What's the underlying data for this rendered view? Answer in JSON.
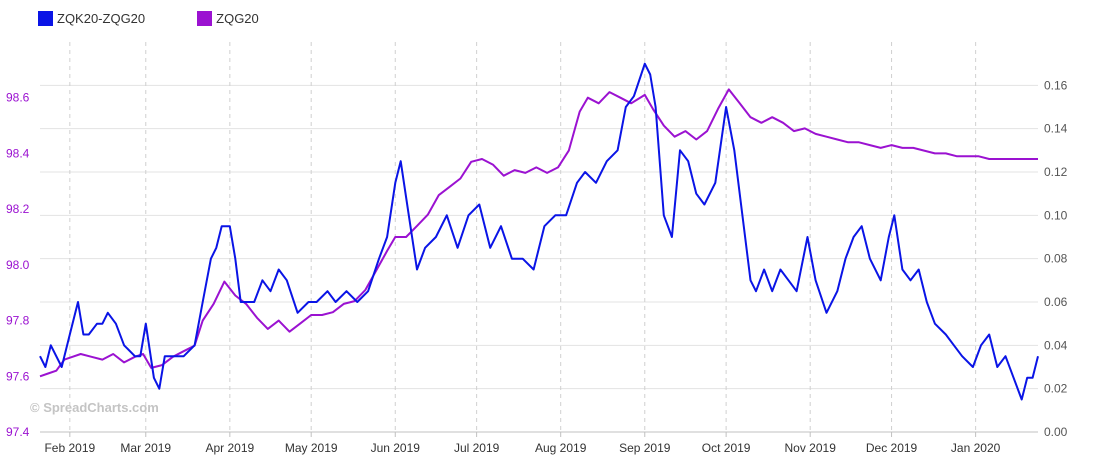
{
  "legend": [
    {
      "name": "ZQK20-ZQG20",
      "color": "#0a14e6"
    },
    {
      "name": "ZQG20",
      "color": "#9b12d1"
    }
  ],
  "watermark": "© SpreadCharts.com",
  "chart_data": {
    "type": "line",
    "x_start": "2019-01-21",
    "x_end": "2020-01-24",
    "x_ticks": [
      {
        "label": "Feb 2019",
        "date": "2019-02-01"
      },
      {
        "label": "Mar 2019",
        "date": "2019-03-01"
      },
      {
        "label": "Apr 2019",
        "date": "2019-04-01"
      },
      {
        "label": "May 2019",
        "date": "2019-05-01"
      },
      {
        "label": "Jun 2019",
        "date": "2019-06-01"
      },
      {
        "label": "Jul 2019",
        "date": "2019-07-01"
      },
      {
        "label": "Aug 2019",
        "date": "2019-08-01"
      },
      {
        "label": "Sep 2019",
        "date": "2019-09-01"
      },
      {
        "label": "Oct 2019",
        "date": "2019-10-01"
      },
      {
        "label": "Nov 2019",
        "date": "2019-11-01"
      },
      {
        "label": "Dec 2019",
        "date": "2019-12-01"
      },
      {
        "label": "Jan 2020",
        "date": "2020-01-01"
      }
    ],
    "y_left": {
      "min": 97.4,
      "max": 98.8,
      "ticks": [
        "97.4",
        "97.6",
        "97.8",
        "98.0",
        "98.2",
        "98.4",
        "98.6"
      ],
      "color": "#9b12d1"
    },
    "y_right": {
      "min": 0.0,
      "max": 0.18,
      "ticks": [
        "0.00",
        "0.02",
        "0.04",
        "0.06",
        "0.08",
        "0.10",
        "0.12",
        "0.14",
        "0.16"
      ],
      "color": "#555555"
    },
    "grid": true,
    "legend_position": "top-left",
    "series": [
      {
        "name": "ZQK20-ZQG20",
        "axis": "right",
        "color": "#0a14e6",
        "points": [
          [
            "2019-01-21",
            0.035
          ],
          [
            "2019-01-23",
            0.03
          ],
          [
            "2019-01-25",
            0.04
          ],
          [
            "2019-01-29",
            0.03
          ],
          [
            "2019-02-01",
            0.045
          ],
          [
            "2019-02-04",
            0.06
          ],
          [
            "2019-02-06",
            0.045
          ],
          [
            "2019-02-08",
            0.045
          ],
          [
            "2019-02-11",
            0.05
          ],
          [
            "2019-02-13",
            0.05
          ],
          [
            "2019-02-15",
            0.055
          ],
          [
            "2019-02-18",
            0.05
          ],
          [
            "2019-02-21",
            0.04
          ],
          [
            "2019-02-25",
            0.035
          ],
          [
            "2019-02-27",
            0.035
          ],
          [
            "2019-03-01",
            0.05
          ],
          [
            "2019-03-04",
            0.025
          ],
          [
            "2019-03-06",
            0.02
          ],
          [
            "2019-03-08",
            0.035
          ],
          [
            "2019-03-11",
            0.035
          ],
          [
            "2019-03-15",
            0.035
          ],
          [
            "2019-03-19",
            0.04
          ],
          [
            "2019-03-22",
            0.06
          ],
          [
            "2019-03-25",
            0.08
          ],
          [
            "2019-03-27",
            0.085
          ],
          [
            "2019-03-29",
            0.095
          ],
          [
            "2019-04-01",
            0.095
          ],
          [
            "2019-04-03",
            0.08
          ],
          [
            "2019-04-05",
            0.06
          ],
          [
            "2019-04-10",
            0.06
          ],
          [
            "2019-04-13",
            0.07
          ],
          [
            "2019-04-16",
            0.065
          ],
          [
            "2019-04-19",
            0.075
          ],
          [
            "2019-04-22",
            0.07
          ],
          [
            "2019-04-26",
            0.055
          ],
          [
            "2019-04-30",
            0.06
          ],
          [
            "2019-05-03",
            0.06
          ],
          [
            "2019-05-07",
            0.065
          ],
          [
            "2019-05-10",
            0.06
          ],
          [
            "2019-05-14",
            0.065
          ],
          [
            "2019-05-18",
            0.06
          ],
          [
            "2019-05-22",
            0.065
          ],
          [
            "2019-05-26",
            0.08
          ],
          [
            "2019-05-29",
            0.09
          ],
          [
            "2019-06-01",
            0.115
          ],
          [
            "2019-06-03",
            0.125
          ],
          [
            "2019-06-06",
            0.1
          ],
          [
            "2019-06-09",
            0.075
          ],
          [
            "2019-06-12",
            0.085
          ],
          [
            "2019-06-16",
            0.09
          ],
          [
            "2019-06-20",
            0.1
          ],
          [
            "2019-06-24",
            0.085
          ],
          [
            "2019-06-28",
            0.1
          ],
          [
            "2019-07-02",
            0.105
          ],
          [
            "2019-07-06",
            0.085
          ],
          [
            "2019-07-10",
            0.095
          ],
          [
            "2019-07-14",
            0.08
          ],
          [
            "2019-07-18",
            0.08
          ],
          [
            "2019-07-22",
            0.075
          ],
          [
            "2019-07-26",
            0.095
          ],
          [
            "2019-07-30",
            0.1
          ],
          [
            "2019-08-03",
            0.1
          ],
          [
            "2019-08-07",
            0.115
          ],
          [
            "2019-08-10",
            0.12
          ],
          [
            "2019-08-14",
            0.115
          ],
          [
            "2019-08-18",
            0.125
          ],
          [
            "2019-08-22",
            0.13
          ],
          [
            "2019-08-25",
            0.15
          ],
          [
            "2019-08-28",
            0.155
          ],
          [
            "2019-09-01",
            0.17
          ],
          [
            "2019-09-03",
            0.165
          ],
          [
            "2019-09-05",
            0.15
          ],
          [
            "2019-09-08",
            0.1
          ],
          [
            "2019-09-11",
            0.09
          ],
          [
            "2019-09-14",
            0.13
          ],
          [
            "2019-09-17",
            0.125
          ],
          [
            "2019-09-20",
            0.11
          ],
          [
            "2019-09-23",
            0.105
          ],
          [
            "2019-09-27",
            0.115
          ],
          [
            "2019-10-01",
            0.15
          ],
          [
            "2019-10-04",
            0.13
          ],
          [
            "2019-10-07",
            0.1
          ],
          [
            "2019-10-10",
            0.07
          ],
          [
            "2019-10-12",
            0.065
          ],
          [
            "2019-10-15",
            0.075
          ],
          [
            "2019-10-18",
            0.065
          ],
          [
            "2019-10-21",
            0.075
          ],
          [
            "2019-10-24",
            0.07
          ],
          [
            "2019-10-27",
            0.065
          ],
          [
            "2019-10-31",
            0.09
          ],
          [
            "2019-11-03",
            0.07
          ],
          [
            "2019-11-07",
            0.055
          ],
          [
            "2019-11-11",
            0.065
          ],
          [
            "2019-11-14",
            0.08
          ],
          [
            "2019-11-17",
            0.09
          ],
          [
            "2019-11-20",
            0.095
          ],
          [
            "2019-11-23",
            0.08
          ],
          [
            "2019-11-27",
            0.07
          ],
          [
            "2019-11-30",
            0.09
          ],
          [
            "2019-12-02",
            0.1
          ],
          [
            "2019-12-05",
            0.075
          ],
          [
            "2019-12-08",
            0.07
          ],
          [
            "2019-12-11",
            0.075
          ],
          [
            "2019-12-14",
            0.06
          ],
          [
            "2019-12-17",
            0.05
          ],
          [
            "2019-12-21",
            0.045
          ],
          [
            "2019-12-24",
            0.04
          ],
          [
            "2019-12-27",
            0.035
          ],
          [
            "2019-12-31",
            0.03
          ],
          [
            "2020-01-03",
            0.04
          ],
          [
            "2020-01-06",
            0.045
          ],
          [
            "2020-01-09",
            0.03
          ],
          [
            "2020-01-12",
            0.035
          ],
          [
            "2020-01-15",
            0.025
          ],
          [
            "2020-01-18",
            0.015
          ],
          [
            "2020-01-20",
            0.025
          ],
          [
            "2020-01-22",
            0.025
          ],
          [
            "2020-01-24",
            0.035
          ]
        ]
      },
      {
        "name": "ZQG20",
        "axis": "left",
        "color": "#9b12d1",
        "points": [
          [
            "2019-01-21",
            97.6
          ],
          [
            "2019-01-24",
            97.61
          ],
          [
            "2019-01-27",
            97.62
          ],
          [
            "2019-01-30",
            97.66
          ],
          [
            "2019-02-02",
            97.67
          ],
          [
            "2019-02-05",
            97.68
          ],
          [
            "2019-02-09",
            97.67
          ],
          [
            "2019-02-13",
            97.66
          ],
          [
            "2019-02-17",
            97.68
          ],
          [
            "2019-02-21",
            97.65
          ],
          [
            "2019-02-25",
            97.67
          ],
          [
            "2019-02-28",
            97.68
          ],
          [
            "2019-03-03",
            97.63
          ],
          [
            "2019-03-07",
            97.64
          ],
          [
            "2019-03-11",
            97.67
          ],
          [
            "2019-03-15",
            97.69
          ],
          [
            "2019-03-19",
            97.71
          ],
          [
            "2019-03-22",
            97.8
          ],
          [
            "2019-03-26",
            97.86
          ],
          [
            "2019-03-30",
            97.94
          ],
          [
            "2019-04-03",
            97.89
          ],
          [
            "2019-04-07",
            97.86
          ],
          [
            "2019-04-11",
            97.81
          ],
          [
            "2019-04-15",
            97.77
          ],
          [
            "2019-04-19",
            97.8
          ],
          [
            "2019-04-23",
            97.76
          ],
          [
            "2019-04-27",
            97.79
          ],
          [
            "2019-05-01",
            97.82
          ],
          [
            "2019-05-05",
            97.82
          ],
          [
            "2019-05-09",
            97.83
          ],
          [
            "2019-05-13",
            97.86
          ],
          [
            "2019-05-17",
            97.87
          ],
          [
            "2019-05-21",
            97.91
          ],
          [
            "2019-05-25",
            97.98
          ],
          [
            "2019-05-29",
            98.05
          ],
          [
            "2019-06-01",
            98.1
          ],
          [
            "2019-06-05",
            98.1
          ],
          [
            "2019-06-09",
            98.14
          ],
          [
            "2019-06-13",
            98.18
          ],
          [
            "2019-06-17",
            98.25
          ],
          [
            "2019-06-21",
            98.28
          ],
          [
            "2019-06-25",
            98.31
          ],
          [
            "2019-06-29",
            98.37
          ],
          [
            "2019-07-03",
            98.38
          ],
          [
            "2019-07-07",
            98.36
          ],
          [
            "2019-07-11",
            98.32
          ],
          [
            "2019-07-15",
            98.34
          ],
          [
            "2019-07-19",
            98.33
          ],
          [
            "2019-07-23",
            98.35
          ],
          [
            "2019-07-27",
            98.33
          ],
          [
            "2019-07-31",
            98.35
          ],
          [
            "2019-08-04",
            98.41
          ],
          [
            "2019-08-08",
            98.55
          ],
          [
            "2019-08-11",
            98.6
          ],
          [
            "2019-08-15",
            98.58
          ],
          [
            "2019-08-19",
            98.62
          ],
          [
            "2019-08-23",
            98.6
          ],
          [
            "2019-08-27",
            98.58
          ],
          [
            "2019-09-01",
            98.61
          ],
          [
            "2019-09-04",
            98.56
          ],
          [
            "2019-09-08",
            98.5
          ],
          [
            "2019-09-12",
            98.46
          ],
          [
            "2019-09-16",
            98.48
          ],
          [
            "2019-09-20",
            98.45
          ],
          [
            "2019-09-24",
            98.48
          ],
          [
            "2019-09-28",
            98.56
          ],
          [
            "2019-10-02",
            98.63
          ],
          [
            "2019-10-06",
            98.58
          ],
          [
            "2019-10-10",
            98.53
          ],
          [
            "2019-10-14",
            98.51
          ],
          [
            "2019-10-18",
            98.53
          ],
          [
            "2019-10-22",
            98.51
          ],
          [
            "2019-10-26",
            98.48
          ],
          [
            "2019-10-30",
            98.49
          ],
          [
            "2019-11-03",
            98.47
          ],
          [
            "2019-11-07",
            98.46
          ],
          [
            "2019-11-11",
            98.45
          ],
          [
            "2019-11-15",
            98.44
          ],
          [
            "2019-11-19",
            98.44
          ],
          [
            "2019-11-23",
            98.43
          ],
          [
            "2019-11-27",
            98.42
          ],
          [
            "2019-12-01",
            98.43
          ],
          [
            "2019-12-05",
            98.42
          ],
          [
            "2019-12-09",
            98.42
          ],
          [
            "2019-12-13",
            98.41
          ],
          [
            "2019-12-17",
            98.4
          ],
          [
            "2019-12-21",
            98.4
          ],
          [
            "2019-12-25",
            98.39
          ],
          [
            "2019-12-29",
            98.39
          ],
          [
            "2020-01-02",
            98.39
          ],
          [
            "2020-01-06",
            98.38
          ],
          [
            "2020-01-10",
            98.38
          ],
          [
            "2020-01-14",
            98.38
          ],
          [
            "2020-01-18",
            98.38
          ],
          [
            "2020-01-22",
            98.38
          ],
          [
            "2020-01-24",
            98.38
          ]
        ]
      }
    ]
  }
}
